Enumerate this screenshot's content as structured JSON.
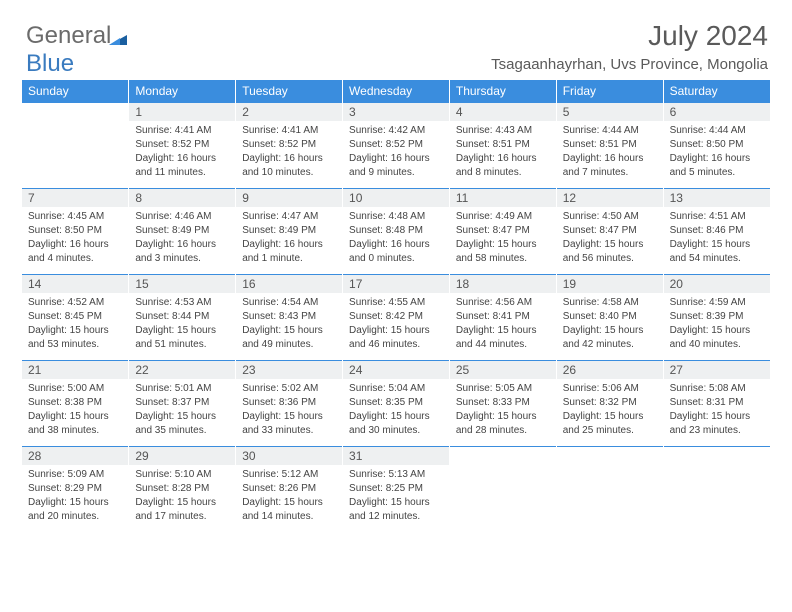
{
  "logo": {
    "part1": "General",
    "part2": "Blue"
  },
  "title": "July 2024",
  "location": "Tsagaanhayrhan, Uvs Province, Mongolia",
  "colors": {
    "header_bg": "#3a8dde",
    "header_text": "#ffffff",
    "daynum_bg": "#eef0f1",
    "border_top": "#3a8dde",
    "logo_gray": "#6b6b6b",
    "logo_blue": "#3a7bbf"
  },
  "dow": [
    "Sunday",
    "Monday",
    "Tuesday",
    "Wednesday",
    "Thursday",
    "Friday",
    "Saturday"
  ],
  "weeks": [
    {
      "nums": [
        "",
        "1",
        "2",
        "3",
        "4",
        "5",
        "6"
      ],
      "cells": [
        null,
        {
          "sr": "Sunrise: 4:41 AM",
          "ss": "Sunset: 8:52 PM",
          "dl": "Daylight: 16 hours and 11 minutes."
        },
        {
          "sr": "Sunrise: 4:41 AM",
          "ss": "Sunset: 8:52 PM",
          "dl": "Daylight: 16 hours and 10 minutes."
        },
        {
          "sr": "Sunrise: 4:42 AM",
          "ss": "Sunset: 8:52 PM",
          "dl": "Daylight: 16 hours and 9 minutes."
        },
        {
          "sr": "Sunrise: 4:43 AM",
          "ss": "Sunset: 8:51 PM",
          "dl": "Daylight: 16 hours and 8 minutes."
        },
        {
          "sr": "Sunrise: 4:44 AM",
          "ss": "Sunset: 8:51 PM",
          "dl": "Daylight: 16 hours and 7 minutes."
        },
        {
          "sr": "Sunrise: 4:44 AM",
          "ss": "Sunset: 8:50 PM",
          "dl": "Daylight: 16 hours and 5 minutes."
        }
      ]
    },
    {
      "nums": [
        "7",
        "8",
        "9",
        "10",
        "11",
        "12",
        "13"
      ],
      "cells": [
        {
          "sr": "Sunrise: 4:45 AM",
          "ss": "Sunset: 8:50 PM",
          "dl": "Daylight: 16 hours and 4 minutes."
        },
        {
          "sr": "Sunrise: 4:46 AM",
          "ss": "Sunset: 8:49 PM",
          "dl": "Daylight: 16 hours and 3 minutes."
        },
        {
          "sr": "Sunrise: 4:47 AM",
          "ss": "Sunset: 8:49 PM",
          "dl": "Daylight: 16 hours and 1 minute."
        },
        {
          "sr": "Sunrise: 4:48 AM",
          "ss": "Sunset: 8:48 PM",
          "dl": "Daylight: 16 hours and 0 minutes."
        },
        {
          "sr": "Sunrise: 4:49 AM",
          "ss": "Sunset: 8:47 PM",
          "dl": "Daylight: 15 hours and 58 minutes."
        },
        {
          "sr": "Sunrise: 4:50 AM",
          "ss": "Sunset: 8:47 PM",
          "dl": "Daylight: 15 hours and 56 minutes."
        },
        {
          "sr": "Sunrise: 4:51 AM",
          "ss": "Sunset: 8:46 PM",
          "dl": "Daylight: 15 hours and 54 minutes."
        }
      ]
    },
    {
      "nums": [
        "14",
        "15",
        "16",
        "17",
        "18",
        "19",
        "20"
      ],
      "cells": [
        {
          "sr": "Sunrise: 4:52 AM",
          "ss": "Sunset: 8:45 PM",
          "dl": "Daylight: 15 hours and 53 minutes."
        },
        {
          "sr": "Sunrise: 4:53 AM",
          "ss": "Sunset: 8:44 PM",
          "dl": "Daylight: 15 hours and 51 minutes."
        },
        {
          "sr": "Sunrise: 4:54 AM",
          "ss": "Sunset: 8:43 PM",
          "dl": "Daylight: 15 hours and 49 minutes."
        },
        {
          "sr": "Sunrise: 4:55 AM",
          "ss": "Sunset: 8:42 PM",
          "dl": "Daylight: 15 hours and 46 minutes."
        },
        {
          "sr": "Sunrise: 4:56 AM",
          "ss": "Sunset: 8:41 PM",
          "dl": "Daylight: 15 hours and 44 minutes."
        },
        {
          "sr": "Sunrise: 4:58 AM",
          "ss": "Sunset: 8:40 PM",
          "dl": "Daylight: 15 hours and 42 minutes."
        },
        {
          "sr": "Sunrise: 4:59 AM",
          "ss": "Sunset: 8:39 PM",
          "dl": "Daylight: 15 hours and 40 minutes."
        }
      ]
    },
    {
      "nums": [
        "21",
        "22",
        "23",
        "24",
        "25",
        "26",
        "27"
      ],
      "cells": [
        {
          "sr": "Sunrise: 5:00 AM",
          "ss": "Sunset: 8:38 PM",
          "dl": "Daylight: 15 hours and 38 minutes."
        },
        {
          "sr": "Sunrise: 5:01 AM",
          "ss": "Sunset: 8:37 PM",
          "dl": "Daylight: 15 hours and 35 minutes."
        },
        {
          "sr": "Sunrise: 5:02 AM",
          "ss": "Sunset: 8:36 PM",
          "dl": "Daylight: 15 hours and 33 minutes."
        },
        {
          "sr": "Sunrise: 5:04 AM",
          "ss": "Sunset: 8:35 PM",
          "dl": "Daylight: 15 hours and 30 minutes."
        },
        {
          "sr": "Sunrise: 5:05 AM",
          "ss": "Sunset: 8:33 PM",
          "dl": "Daylight: 15 hours and 28 minutes."
        },
        {
          "sr": "Sunrise: 5:06 AM",
          "ss": "Sunset: 8:32 PM",
          "dl": "Daylight: 15 hours and 25 minutes."
        },
        {
          "sr": "Sunrise: 5:08 AM",
          "ss": "Sunset: 8:31 PM",
          "dl": "Daylight: 15 hours and 23 minutes."
        }
      ]
    },
    {
      "nums": [
        "28",
        "29",
        "30",
        "31",
        "",
        "",
        ""
      ],
      "cells": [
        {
          "sr": "Sunrise: 5:09 AM",
          "ss": "Sunset: 8:29 PM",
          "dl": "Daylight: 15 hours and 20 minutes."
        },
        {
          "sr": "Sunrise: 5:10 AM",
          "ss": "Sunset: 8:28 PM",
          "dl": "Daylight: 15 hours and 17 minutes."
        },
        {
          "sr": "Sunrise: 5:12 AM",
          "ss": "Sunset: 8:26 PM",
          "dl": "Daylight: 15 hours and 14 minutes."
        },
        {
          "sr": "Sunrise: 5:13 AM",
          "ss": "Sunset: 8:25 PM",
          "dl": "Daylight: 15 hours and 12 minutes."
        },
        null,
        null,
        null
      ]
    }
  ]
}
